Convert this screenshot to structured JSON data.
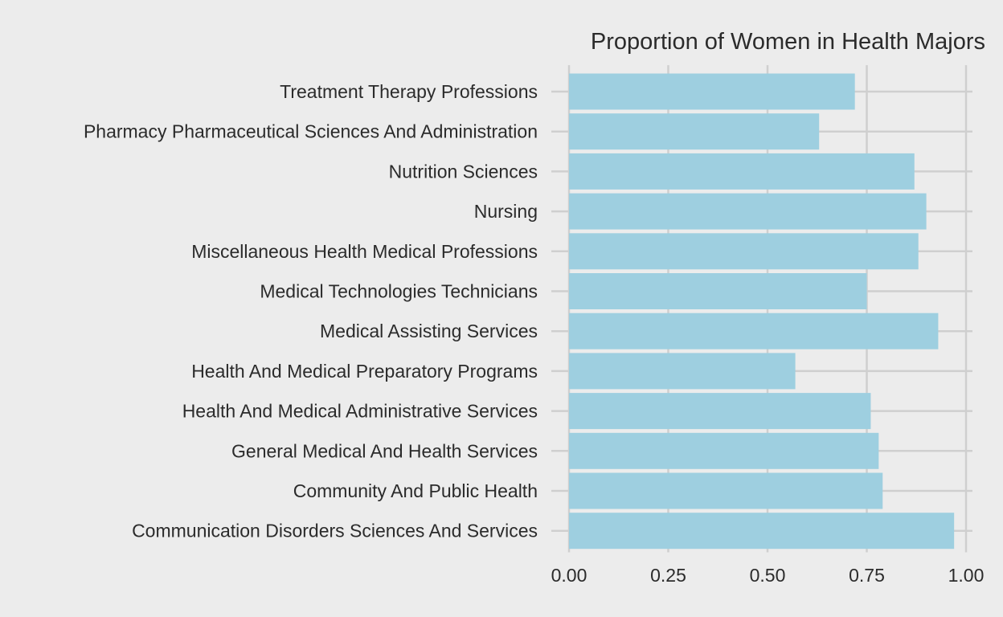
{
  "chart_data": {
    "type": "bar",
    "orientation": "horizontal",
    "title": "Proportion of Women in Health Majors",
    "xlabel": "",
    "ylabel": "",
    "xlim": [
      0,
      1
    ],
    "x_ticks": [
      "0.00",
      "0.25",
      "0.50",
      "0.75",
      "1.00"
    ],
    "x_tick_values": [
      0,
      0.25,
      0.5,
      0.75,
      1.0
    ],
    "grid": true,
    "legend": "none",
    "bar_color": "#9ecfe0",
    "background_color": "#ececec",
    "grid_color": "#cfcfcf",
    "categories": [
      "Treatment Therapy Professions",
      "Pharmacy Pharmaceutical Sciences And Administration",
      "Nutrition Sciences",
      "Nursing",
      "Miscellaneous Health Medical Professions",
      "Medical Technologies Technicians",
      "Medical Assisting Services",
      "Health And Medical Preparatory Programs",
      "Health And Medical Administrative Services",
      "General Medical And Health Services",
      "Community And Public Health",
      "Communication Disorders Sciences And Services"
    ],
    "values": [
      0.72,
      0.63,
      0.87,
      0.9,
      0.88,
      0.75,
      0.93,
      0.57,
      0.76,
      0.78,
      0.79,
      0.97
    ]
  }
}
